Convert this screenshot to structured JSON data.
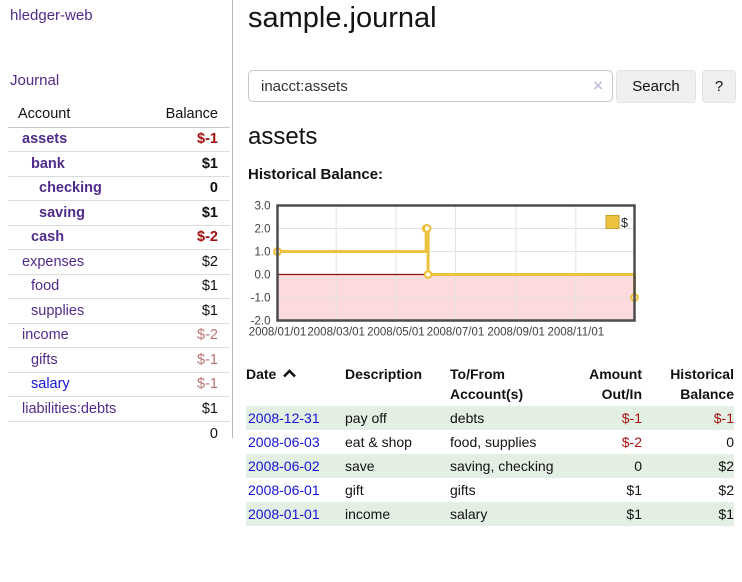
{
  "app": {
    "brand": "hledger-web"
  },
  "sidebar": {
    "journal_link": "Journal",
    "columns": {
      "account": "Account",
      "balance": "Balance"
    },
    "accounts": [
      {
        "name": "assets",
        "balance": "$-1"
      },
      {
        "name": "bank",
        "balance": "$1"
      },
      {
        "name": "checking",
        "balance": "0"
      },
      {
        "name": "saving",
        "balance": "$1"
      },
      {
        "name": "cash",
        "balance": "$-2"
      },
      {
        "name": "expenses",
        "balance": "$2"
      },
      {
        "name": "food",
        "balance": "$1"
      },
      {
        "name": "supplies",
        "balance": "$1"
      },
      {
        "name": "income",
        "balance": "$-2"
      },
      {
        "name": "gifts",
        "balance": "$-1"
      },
      {
        "name": "salary",
        "balance": "$-1"
      },
      {
        "name": "liabilities:debts",
        "balance": "$1"
      }
    ],
    "total": "0"
  },
  "header": {
    "title": "sample.journal"
  },
  "search": {
    "value": "inacct:assets",
    "clear_icon": "×",
    "button": "Search",
    "help_button": "?"
  },
  "account_page": {
    "title": "assets"
  },
  "chart_data": {
    "type": "line",
    "step": true,
    "title": "Historical Balance:",
    "x_range": [
      "2008-01-01",
      "2008-12-31"
    ],
    "ylim": [
      -2,
      3
    ],
    "series": [
      {
        "name": "$",
        "color": "#EDC240",
        "points": [
          [
            "2008-01-01",
            1
          ],
          [
            "2008-06-01",
            2
          ],
          [
            "2008-06-02",
            2
          ],
          [
            "2008-06-03",
            0
          ],
          [
            "2008-12-31",
            -1
          ]
        ]
      }
    ],
    "y_ticks": [
      {
        "v": 3,
        "label": "3.0"
      },
      {
        "v": 2,
        "label": "2.0"
      },
      {
        "v": 1,
        "label": "1.0"
      },
      {
        "v": 0,
        "label": "0.0"
      },
      {
        "v": -1,
        "label": "-1.0"
      },
      {
        "v": -2,
        "label": "-2.0"
      }
    ],
    "x_ticks": [
      {
        "date": "2008-01-01",
        "label": "2008/01/01"
      },
      {
        "date": "2008-03-01",
        "label": "2008/03/01"
      },
      {
        "date": "2008-05-01",
        "label": "2008/05/01"
      },
      {
        "date": "2008-07-01",
        "label": "2008/07/01"
      },
      {
        "date": "2008-09-01",
        "label": "2008/09/01"
      },
      {
        "date": "2008-11-01",
        "label": "2008/11/01"
      }
    ],
    "legend": {
      "label": "$",
      "position": "top-right"
    },
    "colors": {
      "negative_region": "#FBDBDB",
      "zero_line": "#8B1010",
      "grid": "#E2E2E2",
      "border": "#4D4D4D",
      "axis_text": "#3F3F3F",
      "legend_swatch_border": "#C0A22E",
      "marker_fill": "#FFFFFF"
    }
  },
  "register": {
    "columns": {
      "date": "Date",
      "description": "Description",
      "accounts": "To/From Account(s)",
      "amount": "Amount Out/In",
      "balance": "Historical Balance"
    },
    "rows": [
      {
        "date": "2008-12-31",
        "description": "pay off",
        "accounts": "debts",
        "amount": "$-1",
        "balance": "$-1"
      },
      {
        "date": "2008-06-03",
        "description": "eat & shop",
        "accounts": "food, supplies",
        "amount": "$-2",
        "balance": "0"
      },
      {
        "date": "2008-06-02",
        "description": "save",
        "accounts": "saving, checking",
        "amount": "0",
        "balance": "$2"
      },
      {
        "date": "2008-06-01",
        "description": "gift",
        "accounts": "gifts",
        "amount": "$1",
        "balance": "$2"
      },
      {
        "date": "2008-01-01",
        "description": "income",
        "accounts": "salary",
        "amount": "$1",
        "balance": "$1"
      }
    ]
  }
}
